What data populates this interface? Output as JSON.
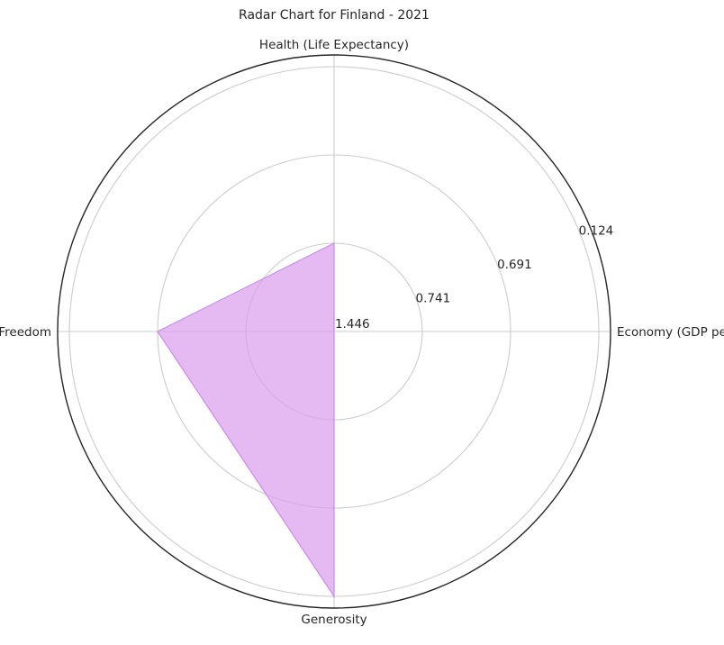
{
  "chart_data": {
    "type": "radar",
    "title": "Radar Chart for Finland - 2021",
    "axes": [
      {
        "label": "Economy (GDP per Capita)",
        "value": 0
      },
      {
        "label": "Health (Life Expectancy)",
        "value": 1
      },
      {
        "label": "Freedom",
        "value": 2
      },
      {
        "label": "Generosity",
        "value": 3
      }
    ],
    "rlim": [
      0,
      3
    ],
    "radial_ticks": [
      {
        "value": 1,
        "label": "0.741"
      },
      {
        "value": 2,
        "label": "0.691"
      },
      {
        "value": 3,
        "label": "0.124"
      }
    ],
    "center_label": "1.446",
    "grid": true,
    "colors": {
      "fill": "#da9ded",
      "edge": "#cf8be8",
      "grid": "#cccccc",
      "outline": "#262626"
    }
  }
}
